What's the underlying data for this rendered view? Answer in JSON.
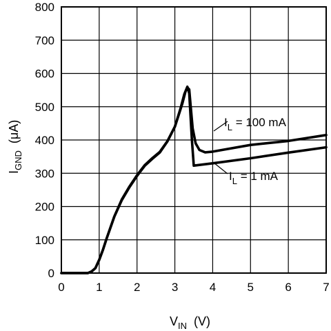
{
  "chart_data": {
    "type": "line",
    "xlabel": {
      "main": "V",
      "sub": "IN",
      "unit": "(V)"
    },
    "ylabel": {
      "main": "I",
      "sub": "GND",
      "unit": "(μA)"
    },
    "xlim": [
      0,
      7
    ],
    "ylim": [
      0,
      800
    ],
    "x_ticks": [
      0,
      1,
      2,
      3,
      4,
      5,
      6,
      7
    ],
    "y_ticks": [
      0,
      100,
      200,
      300,
      400,
      500,
      600,
      700,
      800
    ],
    "grid": true,
    "series": [
      {
        "name": {
          "main": "I",
          "sub": "L",
          "rest": " = 100 mA"
        },
        "points": [
          [
            0,
            0
          ],
          [
            0.7,
            0
          ],
          [
            0.8,
            5
          ],
          [
            0.9,
            15
          ],
          [
            1.0,
            40
          ],
          [
            1.1,
            70
          ],
          [
            1.2,
            105
          ],
          [
            1.4,
            170
          ],
          [
            1.6,
            220
          ],
          [
            1.8,
            258
          ],
          [
            2.0,
            292
          ],
          [
            2.2,
            322
          ],
          [
            2.4,
            343
          ],
          [
            2.6,
            362
          ],
          [
            2.8,
            395
          ],
          [
            3.0,
            440
          ],
          [
            3.1,
            475
          ],
          [
            3.2,
            510
          ],
          [
            3.28,
            545
          ],
          [
            3.33,
            558
          ],
          [
            3.38,
            552
          ],
          [
            3.42,
            500
          ],
          [
            3.47,
            435
          ],
          [
            3.55,
            390
          ],
          [
            3.65,
            370
          ],
          [
            3.8,
            363
          ],
          [
            4.0,
            365
          ],
          [
            5.0,
            385
          ],
          [
            6.0,
            397
          ],
          [
            7.0,
            415
          ]
        ]
      },
      {
        "name": {
          "main": "I",
          "sub": "L",
          "rest": " = 1 mA"
        },
        "points": [
          [
            0,
            0
          ],
          [
            0.7,
            0
          ],
          [
            0.8,
            5
          ],
          [
            0.9,
            15
          ],
          [
            1.0,
            40
          ],
          [
            1.1,
            70
          ],
          [
            1.2,
            105
          ],
          [
            1.4,
            170
          ],
          [
            1.6,
            222
          ],
          [
            1.8,
            260
          ],
          [
            2.0,
            294
          ],
          [
            2.2,
            324
          ],
          [
            2.4,
            345
          ],
          [
            2.6,
            364
          ],
          [
            2.8,
            396
          ],
          [
            3.0,
            440
          ],
          [
            3.15,
            495
          ],
          [
            3.25,
            538
          ],
          [
            3.33,
            560
          ],
          [
            3.38,
            540
          ],
          [
            3.45,
            400
          ],
          [
            3.5,
            323
          ],
          [
            4.0,
            330
          ],
          [
            5.0,
            345
          ],
          [
            6.0,
            362
          ],
          [
            7.0,
            378
          ]
        ]
      }
    ]
  }
}
